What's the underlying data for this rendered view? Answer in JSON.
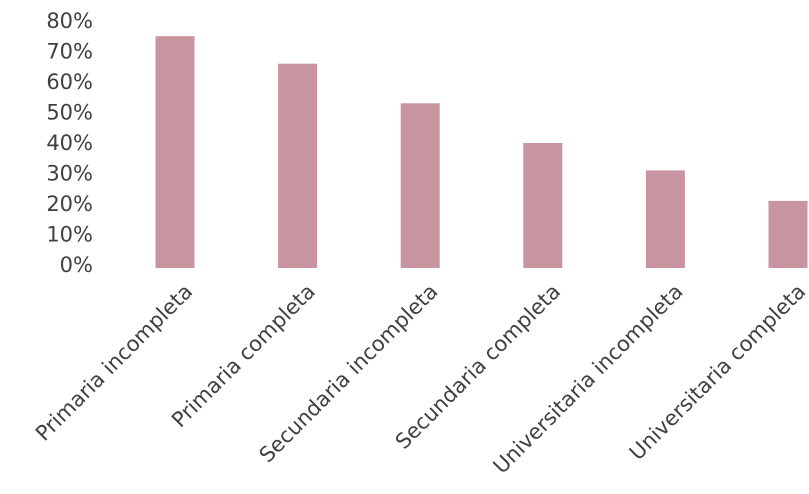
{
  "chart_data": {
    "type": "bar",
    "title": "",
    "xlabel": "",
    "ylabel": "",
    "categories": [
      "Primaria incompleta",
      "Primaria completa",
      "Secundaria incompleta",
      "Secundaria completa",
      "Universitaria incompleta",
      "Universitaria completa"
    ],
    "values": [
      76,
      67,
      54,
      41,
      32,
      22
    ],
    "value_unit": "%",
    "ylim": [
      0,
      80
    ],
    "yticks": [
      0,
      10,
      20,
      30,
      40,
      50,
      60,
      70,
      80
    ],
    "ytick_labels": [
      "0%",
      "10%",
      "20%",
      "30%",
      "40%",
      "50%",
      "60%",
      "70%",
      "80%"
    ],
    "grid": false,
    "legend": "none",
    "colors": {
      "bar": "#c8949f",
      "text": "#404040"
    }
  }
}
